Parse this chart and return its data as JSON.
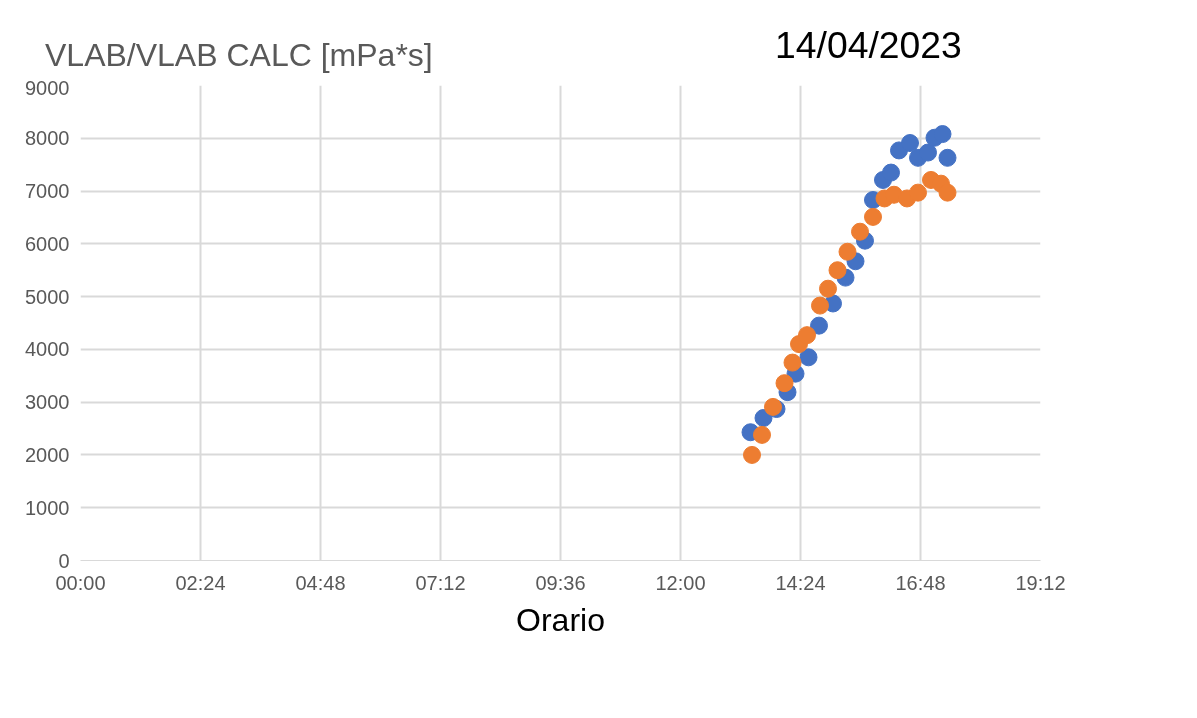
{
  "chart_data": {
    "type": "scatter",
    "title": "VLAB/VLAB CALC [mPa*s]",
    "xlabel": "Orario",
    "annotations": [
      "14/04/2023"
    ],
    "xlim": [
      0,
      19.2
    ],
    "xticks": [
      {
        "value": 0,
        "label": "00:00"
      },
      {
        "value": 2.4,
        "label": "02:24"
      },
      {
        "value": 4.8,
        "label": "04:48"
      },
      {
        "value": 7.2,
        "label": "07:12"
      },
      {
        "value": 9.6,
        "label": "09:36"
      },
      {
        "value": 12,
        "label": "12:00"
      },
      {
        "value": 14.4,
        "label": "14:24"
      },
      {
        "value": 16.8,
        "label": "16:48"
      },
      {
        "value": 19.2,
        "label": "19:12"
      }
    ],
    "ylim": [
      0,
      9000
    ],
    "yticks": [
      0,
      1000,
      2000,
      3000,
      4000,
      5000,
      6000,
      7000,
      8000,
      9000
    ],
    "grid": true,
    "marker": "circle",
    "series": [
      {
        "color": "#4472c4",
        "x": [
          13.4,
          13.66,
          13.92,
          14.14,
          14.3,
          14.56,
          14.77,
          15.05,
          15.3,
          15.5,
          15.69,
          15.85,
          16.05,
          16.21,
          16.37,
          16.59,
          16.75,
          16.95,
          17.08,
          17.24,
          17.34
        ],
        "values": [
          2430,
          2700,
          2870,
          3190,
          3540,
          3850,
          4450,
          4870,
          5360,
          5670,
          6060,
          6830,
          7210,
          7350,
          7770,
          7910,
          7630,
          7730,
          8010,
          8080,
          7630
        ]
      },
      {
        "color": "#ed7d31",
        "x": [
          13.43,
          13.63,
          13.85,
          14.08,
          14.24,
          14.37,
          14.53,
          14.79,
          14.95,
          15.14,
          15.34,
          15.59,
          15.85,
          16.08,
          16.27,
          16.53,
          16.75,
          17.01,
          17.21,
          17.34
        ],
        "values": [
          2000,
          2380,
          2910,
          3360,
          3750,
          4100,
          4270,
          4830,
          5150,
          5500,
          5850,
          6230,
          6510,
          6860,
          6930,
          6860,
          6970,
          7210,
          7140,
          6970
        ]
      }
    ]
  }
}
